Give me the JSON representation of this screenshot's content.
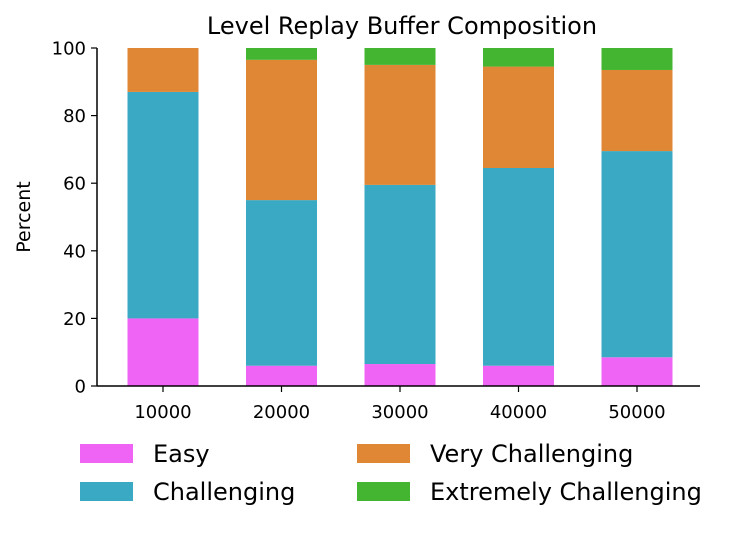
{
  "chart_data": {
    "type": "bar",
    "stacked": true,
    "title": "Level Replay Buffer Composition",
    "xlabel": "",
    "ylabel": "Percent",
    "ylim": [
      0,
      100
    ],
    "yticks": [
      0,
      20,
      40,
      60,
      80,
      100
    ],
    "categories": [
      "10000",
      "20000",
      "30000",
      "40000",
      "50000"
    ],
    "series": [
      {
        "name": "Easy",
        "color": "#f064f5",
        "values": [
          20,
          6,
          6.5,
          6,
          8.5
        ]
      },
      {
        "name": "Challenging",
        "color": "#3aa9c3",
        "values": [
          67,
          49,
          53,
          58.5,
          61
        ]
      },
      {
        "name": "Very Challenging",
        "color": "#e08735",
        "values": [
          13,
          41.5,
          35.5,
          30,
          24
        ]
      },
      {
        "name": "Extremely Challenging",
        "color": "#43b531",
        "values": [
          0,
          3.5,
          5,
          5.5,
          6.5
        ]
      }
    ],
    "grid": false,
    "legend_position": "bottom"
  }
}
